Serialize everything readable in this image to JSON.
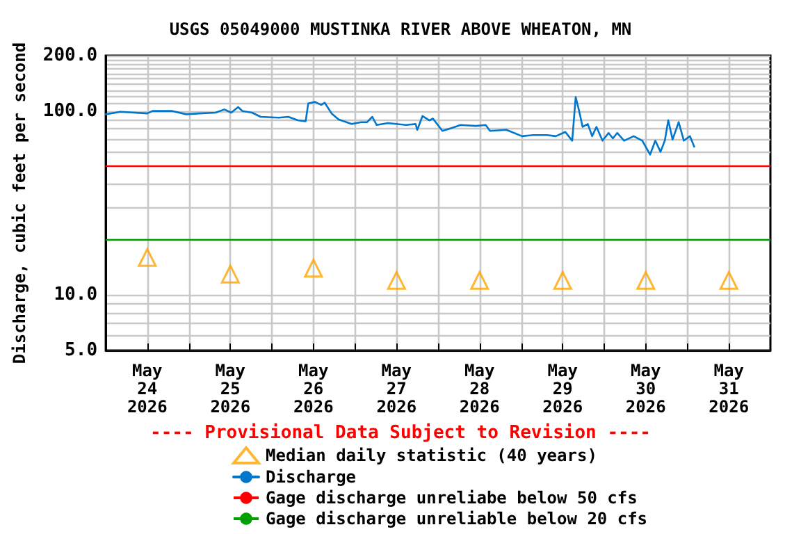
{
  "chart_data": {
    "type": "line",
    "title": "USGS 05049000 MUSTINKA RIVER ABOVE WHEATON, MN",
    "ylabel": "Discharge, cubic feet per second",
    "annotations": [
      "---- Provisional Data Subject to Revision ----"
    ],
    "log": "y",
    "grid": true,
    "legend": "bottom",
    "xlim": [
      "2026-05-24T00:00",
      "2026-06-01T00:00"
    ],
    "xticks": [
      {
        "value": "2026-05-24T12:00",
        "label": "May\n24\n2026"
      },
      {
        "value": "2026-05-25T00:00",
        "label": null
      },
      {
        "value": "2026-05-25T12:00",
        "label": "May\n25\n2026"
      },
      {
        "value": "2026-05-26T00:00",
        "label": null
      },
      {
        "value": "2026-05-26T12:00",
        "label": "May\n26\n2026"
      },
      {
        "value": "2026-05-27T00:00",
        "label": null
      },
      {
        "value": "2026-05-27T12:00",
        "label": "May\n27\n2026"
      },
      {
        "value": "2026-05-28T00:00",
        "label": null
      },
      {
        "value": "2026-05-28T12:00",
        "label": "May\n28\n2026"
      },
      {
        "value": "2026-05-29T00:00",
        "label": null
      },
      {
        "value": "2026-05-29T12:00",
        "label": "May\n29\n2026"
      },
      {
        "value": "2026-05-30T00:00",
        "label": null
      },
      {
        "value": "2026-05-30T12:00",
        "label": "May\n30\n2026"
      },
      {
        "value": "2026-05-31T00:00",
        "label": null
      },
      {
        "value": "2026-05-31T12:00",
        "label": "May\n31\n2026"
      }
    ],
    "ylim": [
      5,
      200
    ],
    "yticks": [
      {
        "value": 5,
        "label": "5.0"
      },
      {
        "value": 6,
        "label": null
      },
      {
        "value": 7,
        "label": null
      },
      {
        "value": 8,
        "label": null
      },
      {
        "value": 9,
        "label": null
      },
      {
        "value": 10,
        "label": "10.0"
      },
      {
        "value": 20,
        "label": null
      },
      {
        "value": 30,
        "label": null
      },
      {
        "value": 40,
        "label": null
      },
      {
        "value": 50,
        "label": null
      },
      {
        "value": 60,
        "label": null
      },
      {
        "value": 70,
        "label": null
      },
      {
        "value": 80,
        "label": null
      },
      {
        "value": 90,
        "label": null
      },
      {
        "value": 100,
        "label": "100.0"
      },
      {
        "value": 110,
        "label": null
      },
      {
        "value": 120,
        "label": null
      },
      {
        "value": 130,
        "label": null
      },
      {
        "value": 140,
        "label": null
      },
      {
        "value": 150,
        "label": null
      },
      {
        "value": 160,
        "label": null
      },
      {
        "value": 170,
        "label": null
      },
      {
        "value": 180,
        "label": null
      },
      {
        "value": 190,
        "label": null
      },
      {
        "value": 200,
        "label": "200.0"
      }
    ],
    "series": [
      {
        "name": "Median daily statistic (40 years)",
        "type": "scatter",
        "marker": "triangle",
        "color": "#ffa500",
        "x": [
          "2026-05-24T12:00",
          "2026-05-25T12:00",
          "2026-05-26T12:00",
          "2026-05-27T12:00",
          "2026-05-28T12:00",
          "2026-05-29T12:00",
          "2026-05-30T12:00",
          "2026-05-31T12:00"
        ],
        "values": [
          16,
          13,
          14,
          12,
          12,
          12,
          12,
          12
        ]
      },
      {
        "name": "Discharge",
        "marker": "none",
        "color": "#0077cc",
        "x": [
          "2026-05-24T00:00",
          "2026-05-24T04:15",
          "2026-05-24T12:00",
          "2026-05-24T13:30",
          "2026-05-24T19:15",
          "2026-05-24T23:15",
          "2026-05-25T03:00",
          "2026-05-25T07:45",
          "2026-05-25T10:15",
          "2026-05-25T12:15",
          "2026-05-25T14:15",
          "2026-05-25T15:30",
          "2026-05-25T18:15",
          "2026-05-25T20:45",
          "2026-05-26T02:00",
          "2026-05-26T04:45",
          "2026-05-26T07:30",
          "2026-05-26T09:45",
          "2026-05-26T10:30",
          "2026-05-26T12:30",
          "2026-05-26T14:15",
          "2026-05-26T15:15",
          "2026-05-26T17:15",
          "2026-05-26T19:15",
          "2026-05-26T23:00",
          "2026-05-27T01:45",
          "2026-05-27T03:30",
          "2026-05-27T05:00",
          "2026-05-27T06:15",
          "2026-05-27T09:30",
          "2026-05-27T14:45",
          "2026-05-27T17:30",
          "2026-05-27T18:00",
          "2026-05-27T19:30",
          "2026-05-27T21:30",
          "2026-05-27T22:30",
          "2026-05-28T01:15",
          "2026-05-28T04:00",
          "2026-05-28T06:30",
          "2026-05-28T11:00",
          "2026-05-28T13:45",
          "2026-05-28T15:00",
          "2026-05-28T19:45",
          "2026-05-29T00:15",
          "2026-05-29T03:30",
          "2026-05-29T07:30",
          "2026-05-29T10:00",
          "2026-05-29T12:45",
          "2026-05-29T14:45",
          "2026-05-29T15:45",
          "2026-05-29T16:45",
          "2026-05-29T17:45",
          "2026-05-29T19:15",
          "2026-05-29T20:30",
          "2026-05-29T21:45",
          "2026-05-29T23:30",
          "2026-05-30T01:15",
          "2026-05-30T02:30",
          "2026-05-30T03:45",
          "2026-05-30T05:45",
          "2026-05-30T08:30",
          "2026-05-30T11:00",
          "2026-05-30T13:15",
          "2026-05-30T14:45",
          "2026-05-30T16:15",
          "2026-05-30T17:30",
          "2026-05-30T18:30",
          "2026-05-30T19:45",
          "2026-05-30T21:30",
          "2026-05-30T23:00",
          "2026-05-31T00:45",
          "2026-05-31T02:00"
        ],
        "values": [
          96,
          99,
          97,
          100,
          100,
          96,
          97,
          98,
          102,
          98,
          105,
          100,
          98,
          93,
          92,
          93,
          89,
          88,
          110,
          112,
          108,
          111,
          97,
          90,
          85,
          87,
          87,
          93,
          84,
          86,
          84,
          85,
          79,
          94,
          89,
          91,
          78,
          81,
          84,
          83,
          84,
          78,
          79,
          73,
          74,
          74,
          73,
          77,
          69,
          119,
          100,
          82,
          85,
          73,
          82,
          69,
          76,
          71,
          76,
          69,
          73,
          69,
          58,
          69,
          60,
          69,
          89,
          70,
          87,
          69,
          73,
          64
        ]
      }
    ],
    "ref_lines": [
      {
        "axis": "y",
        "value": 50,
        "label": "Gage discharge unreliabe below 50 cfs",
        "color": "#ff0000",
        "line_style": "solid"
      },
      {
        "axis": "y",
        "value": 20,
        "label": "Gage discharge unreliable below 20 cfs",
        "color": "#00a000",
        "line_style": "solid"
      }
    ]
  }
}
